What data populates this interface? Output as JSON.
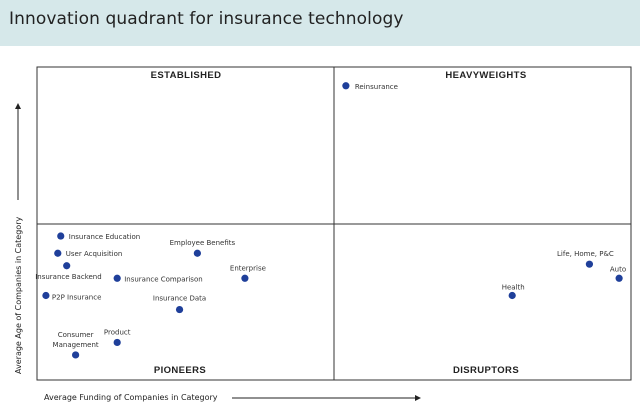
{
  "title": "Innovation quadrant for insurance technology",
  "chart_data": {
    "type": "scatter",
    "xlabel": "Average Funding of Companies in Category",
    "ylabel": "Average Age of Companies in Category",
    "quadrants": {
      "top_left": "ESTABLISHED",
      "top_right": "HEAVYWEIGHTS",
      "bottom_left": "PIONEERS",
      "bottom_right": "DISRUPTORS"
    },
    "xlim": [
      0,
      100
    ],
    "ylim": [
      0,
      100
    ],
    "grid": false,
    "points": [
      {
        "label": "Reinsurance",
        "x": 52,
        "y": 94
      },
      {
        "label": "Insurance Education",
        "x": 4,
        "y": 46
      },
      {
        "label": "User Acquisition",
        "x": 3.5,
        "y": 40.5
      },
      {
        "label": "Insurance Backend",
        "x": 5,
        "y": 36.5
      },
      {
        "label": "P2P Insurance",
        "x": 1.5,
        "y": 27
      },
      {
        "label": "Employee Benefits",
        "x": 27,
        "y": 40.5
      },
      {
        "label": "Insurance Comparison",
        "x": 13.5,
        "y": 32.5
      },
      {
        "label": "Enterprise",
        "x": 35,
        "y": 32.5
      },
      {
        "label": "Insurance Data",
        "x": 24,
        "y": 22.5
      },
      {
        "label": "Product",
        "x": 13.5,
        "y": 12
      },
      {
        "label": "Consumer Management",
        "x": 6.5,
        "y": 8
      },
      {
        "label": "Health",
        "x": 80,
        "y": 27
      },
      {
        "label": "Life, Home, P&C",
        "x": 93,
        "y": 37
      },
      {
        "label": "Auto",
        "x": 98,
        "y": 32.5
      }
    ]
  }
}
